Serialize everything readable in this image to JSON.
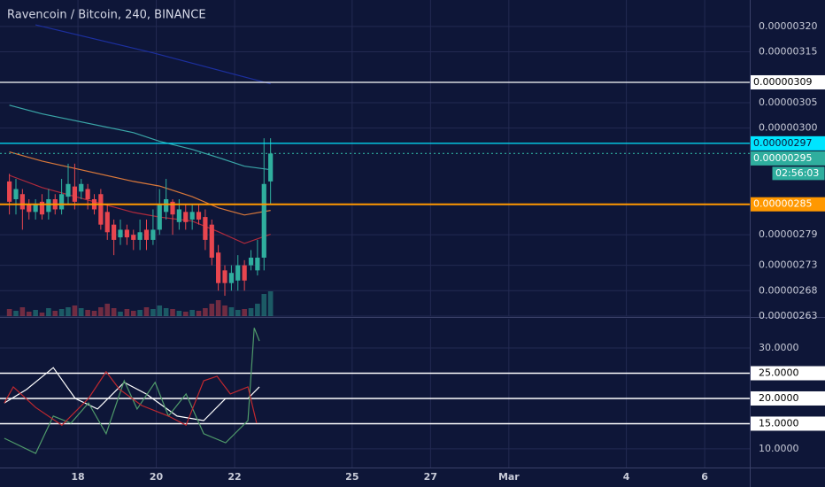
{
  "chart_data": [
    {
      "type": "candlestick",
      "title": "Ravencoin / Bitcoin, 240, BINANCE",
      "up_color": "#2fae9e",
      "down_color": "#e8464f",
      "x": [
        16.25,
        16.417,
        16.583,
        16.75,
        16.917,
        17.083,
        17.25,
        17.417,
        17.583,
        17.75,
        17.917,
        18.083,
        18.25,
        18.417,
        18.583,
        18.75,
        18.917,
        19.083,
        19.25,
        19.417,
        19.583,
        19.75,
        19.917,
        20.083,
        20.25,
        20.417,
        20.583,
        20.75,
        20.917,
        21.083,
        21.25,
        21.417,
        21.583,
        21.75,
        21.917,
        22.083,
        22.25,
        22.417,
        22.583,
        22.75,
        22.917
      ],
      "open": [
        2.895e-06,
        2.86e-06,
        2.87e-06,
        2.85e-06,
        2.835e-06,
        2.855e-06,
        2.835e-06,
        2.86e-06,
        2.84e-06,
        2.865e-06,
        2.885e-06,
        2.875e-06,
        2.88e-06,
        2.86e-06,
        2.87e-06,
        2.835e-06,
        2.81e-06,
        2.785e-06,
        2.8e-06,
        2.79e-06,
        2.78e-06,
        2.8e-06,
        2.78e-06,
        2.8e-06,
        2.835e-06,
        2.855e-06,
        2.815e-06,
        2.835e-06,
        2.82e-06,
        2.835e-06,
        2.825e-06,
        2.81e-06,
        2.755e-06,
        2.72e-06,
        2.695e-06,
        2.7e-06,
        2.73e-06,
        2.73e-06,
        2.72e-06,
        2.745e-06,
        2.895e-06
      ],
      "high": [
        2.91e-06,
        2.9e-06,
        2.88e-06,
        2.86e-06,
        2.86e-06,
        2.87e-06,
        2.88e-06,
        2.87e-06,
        2.9e-06,
        2.93e-06,
        2.93e-06,
        2.9e-06,
        2.89e-06,
        2.87e-06,
        2.88e-06,
        2.85e-06,
        2.82e-06,
        2.82e-06,
        2.81e-06,
        2.8e-06,
        2.82e-06,
        2.82e-06,
        2.84e-06,
        2.88e-06,
        2.9e-06,
        2.86e-06,
        2.86e-06,
        2.85e-06,
        2.85e-06,
        2.85e-06,
        2.84e-06,
        2.82e-06,
        2.77e-06,
        2.73e-06,
        2.73e-06,
        2.75e-06,
        2.74e-06,
        2.76e-06,
        2.78e-06,
        2.98e-06,
        2.98e-06
      ],
      "low": [
        2.83e-06,
        2.83e-06,
        2.8e-06,
        2.82e-06,
        2.82e-06,
        2.82e-06,
        2.82e-06,
        2.83e-06,
        2.83e-06,
        2.85e-06,
        2.84e-06,
        2.86e-06,
        2.84e-06,
        2.83e-06,
        2.8e-06,
        2.78e-06,
        2.75e-06,
        2.77e-06,
        2.77e-06,
        2.76e-06,
        2.76e-06,
        2.76e-06,
        2.77e-06,
        2.79e-06,
        2.82e-06,
        2.79e-06,
        2.8e-06,
        2.8e-06,
        2.8e-06,
        2.81e-06,
        2.76e-06,
        2.73e-06,
        2.68e-06,
        2.67e-06,
        2.68e-06,
        2.68e-06,
        2.68e-06,
        2.72e-06,
        2.71e-06,
        2.72e-06,
        2.85e-06
      ],
      "close": [
        2.855e-06,
        2.88e-06,
        2.84e-06,
        2.835e-06,
        2.85e-06,
        2.83e-06,
        2.86e-06,
        2.84e-06,
        2.87e-06,
        2.89e-06,
        2.855e-06,
        2.89e-06,
        2.86e-06,
        2.84e-06,
        2.81e-06,
        2.795e-06,
        2.78e-06,
        2.8e-06,
        2.785e-06,
        2.78e-06,
        2.795e-06,
        2.78e-06,
        2.8e-06,
        2.85e-06,
        2.86e-06,
        2.83e-06,
        2.84e-06,
        2.815e-06,
        2.835e-06,
        2.82e-06,
        2.78e-06,
        2.745e-06,
        2.695e-06,
        2.695e-06,
        2.715e-06,
        2.73e-06,
        2.7e-06,
        2.745e-06,
        2.745e-06,
        2.89e-06,
        2.95e-06
      ],
      "volume": {
        "values": [
          8,
          6,
          10,
          5,
          7,
          4,
          9,
          6,
          8,
          10,
          12,
          9,
          7,
          6,
          10,
          14,
          9,
          5,
          8,
          6,
          7,
          10,
          8,
          12,
          9,
          8,
          6,
          5,
          7,
          6,
          9,
          14,
          18,
          12,
          10,
          7,
          8,
          9,
          14,
          25,
          28
        ],
        "ylim": [
          0,
          100
        ]
      },
      "moving_averages": [
        {
          "color": "#1c2f9e",
          "x": [
            16.917,
            19.917,
            22.917
          ],
          "values": [
            3.203e-06,
            3.148e-06,
            3.087e-06
          ]
        },
        {
          "color": "#3aa6a8",
          "x": [
            16.25,
            17.083,
            19.417,
            20.083,
            20.917,
            21.583,
            22.25,
            22.917
          ],
          "values": [
            3.045e-06,
            3.028e-06,
            2.991e-06,
            2.974e-06,
            2.958e-06,
            2.942e-06,
            2.925e-06,
            2.918e-06
          ]
        },
        {
          "color": "#d9783a",
          "x": [
            16.25,
            17.083,
            19.417,
            20.083,
            20.917,
            21.583,
            22.25,
            22.917
          ],
          "values": [
            2.953e-06,
            2.935e-06,
            2.895e-06,
            2.886e-06,
            2.865e-06,
            2.843e-06,
            2.829e-06,
            2.838e-06
          ]
        },
        {
          "color": "#b02a3c",
          "x": [
            16.25,
            17.083,
            19.417,
            20.083,
            20.917,
            21.583,
            22.25,
            22.917
          ],
          "values": [
            2.907e-06,
            2.883e-06,
            2.834e-06,
            2.825e-06,
            2.817e-06,
            2.796e-06,
            2.773e-06,
            2.791e-06
          ]
        }
      ],
      "price_lines": [
        {
          "value": 3.09e-06,
          "color": "#ffffff",
          "text_color": "#000000",
          "dash": "none"
        },
        {
          "value": 2.97e-06,
          "color": "#00e5ff",
          "text_color": "#0e1638",
          "dash": "none"
        },
        {
          "value": 2.95e-06,
          "color": "#2fae9e",
          "text_color": "#ffffff",
          "dash": "2 3",
          "countdown": "02:56:03"
        },
        {
          "value": 2.85e-06,
          "color": "#ff9800",
          "text_color": "#ffffff",
          "dash": "none"
        }
      ],
      "xlim": [
        16.01,
        35.15
      ],
      "xticks": [
        18,
        20,
        22,
        25,
        27,
        {
          "value": 29,
          "label": "Mar"
        },
        {
          "value": 32,
          "label": "4"
        },
        {
          "value": 34,
          "label": "6"
        }
      ],
      "ylim": [
        2.63e-06,
        3.252e-06
      ],
      "yticks": [
        {
          "value": 3.2e-06,
          "label": "0.00000320"
        },
        3.15e-06,
        3.05e-06,
        {
          "value": 3e-06,
          "label": "0.00000300"
        },
        2.79e-06,
        2.73e-06,
        2.68e-06,
        2.63e-06
      ],
      "grid": true
    },
    {
      "type": "line",
      "series": [
        {
          "color": "#ffffff",
          "x": [
            16.12,
            16.69,
            17.37,
            17.93,
            18.5,
            19.18,
            19.74,
            20.53,
            21.21,
            21.77,
            22.34,
            22.63
          ],
          "values": [
            19.1,
            21.8,
            26.1,
            20,
            17.9,
            23.2,
            20.9,
            16.5,
            15.6,
            20,
            20,
            22.3
          ]
        },
        {
          "color": "#4f9a6a",
          "x": [
            16.12,
            16.92,
            17.37,
            17.82,
            18.27,
            18.72,
            19.18,
            19.51,
            19.97,
            20.31,
            20.76,
            21.21,
            21.77,
            22.34,
            22.5,
            22.63
          ],
          "values": [
            12.1,
            9.1,
            16.5,
            15.1,
            19.1,
            13,
            23.5,
            17.9,
            23.2,
            16.5,
            20.9,
            13,
            11.2,
            15.6,
            34,
            31.4
          ]
        },
        {
          "color": "#c0282f",
          "x": [
            16.12,
            16.35,
            16.92,
            17.59,
            18.27,
            18.72,
            19.06,
            19.63,
            20.31,
            20.76,
            21.21,
            21.55,
            21.89,
            22.34,
            22.56
          ],
          "values": [
            19.1,
            22.3,
            18.2,
            14.7,
            20,
            25.3,
            21.8,
            18.6,
            16.5,
            14.7,
            23.5,
            24.4,
            20.9,
            22.3,
            15.1
          ]
        }
      ],
      "xlim": [
        16.01,
        35.15
      ],
      "ylim": [
        6.3,
        35.8
      ],
      "yticks": [
        {
          "value": 30,
          "label": "30.0000"
        },
        {
          "value": 25,
          "label": "25.0000",
          "line": true
        },
        {
          "value": 20,
          "label": "20.0000",
          "line": true
        },
        {
          "value": 15,
          "label": "15.0000",
          "line": true
        },
        {
          "value": 10,
          "label": "10.0000"
        }
      ],
      "grid": true
    }
  ]
}
